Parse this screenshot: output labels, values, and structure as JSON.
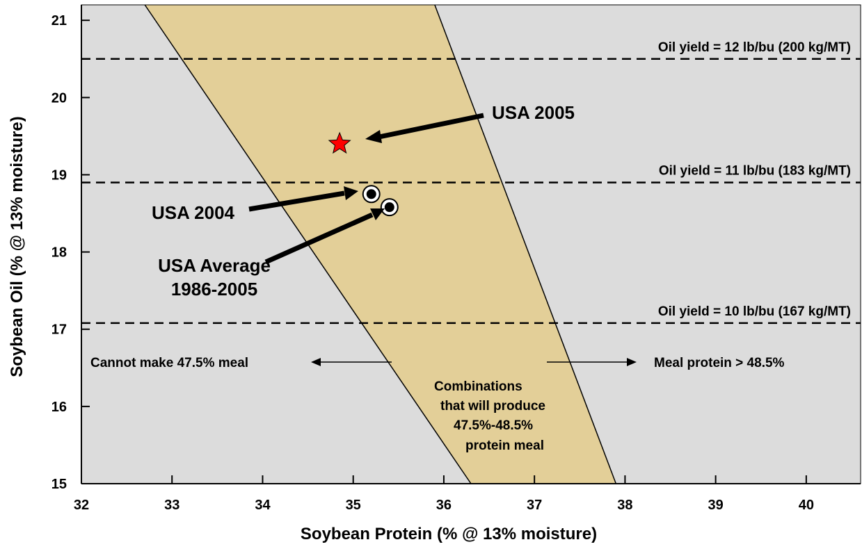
{
  "chart_data": {
    "type": "line",
    "title": "",
    "xlabel": "Soybean Protein (% @ 13% moisture)",
    "ylabel": "Soybean Oil (% @ 13% moisture)",
    "xlim": [
      32,
      40.6
    ],
    "ylim": [
      15,
      21.2
    ],
    "x_ticks": [
      32,
      33,
      34,
      35,
      36,
      37,
      38,
      39,
      40
    ],
    "y_ticks": [
      15,
      16,
      17,
      18,
      19,
      20,
      21
    ],
    "grid": false,
    "colors": {
      "plot_background": "#dcdcdc",
      "band": "#e3cf98",
      "star": "#ff0000"
    },
    "band": {
      "label_lines": [
        "Combinations",
        "that will produce",
        "47.5%-48.5%",
        "protein meal"
      ],
      "left_boundary": [
        [
          32.7,
          21.2
        ],
        [
          36.3,
          15
        ]
      ],
      "right_boundary": [
        [
          35.9,
          21.2
        ],
        [
          37.9,
          15
        ]
      ]
    },
    "oil_yield_lines": [
      {
        "y": 20.5,
        "label": "Oil yield = 12 lb/bu (200 kg/MT)"
      },
      {
        "y": 18.9,
        "label": "Oil yield = 11 lb/bu (183 kg/MT)"
      },
      {
        "y": 17.08,
        "label": "Oil yield = 10 lb/bu (167 kg/MT)"
      }
    ],
    "points": [
      {
        "label": "USA 2005",
        "x": 34.85,
        "y": 19.4,
        "marker": "star"
      },
      {
        "label": "USA 2004",
        "x": 35.2,
        "y": 18.75,
        "marker": "circle"
      },
      {
        "label": "USA Average 1986-2005",
        "x": 35.4,
        "y": 18.58,
        "marker": "circle"
      }
    ],
    "annotations": {
      "usa2005": "USA 2005",
      "usa2004": "USA 2004",
      "usa_avg_line1": "USA Average",
      "usa_avg_line2": "1986-2005",
      "cannot_make": "Cannot make 47.5% meal",
      "meal_protein": "Meal protein > 48.5%"
    }
  }
}
